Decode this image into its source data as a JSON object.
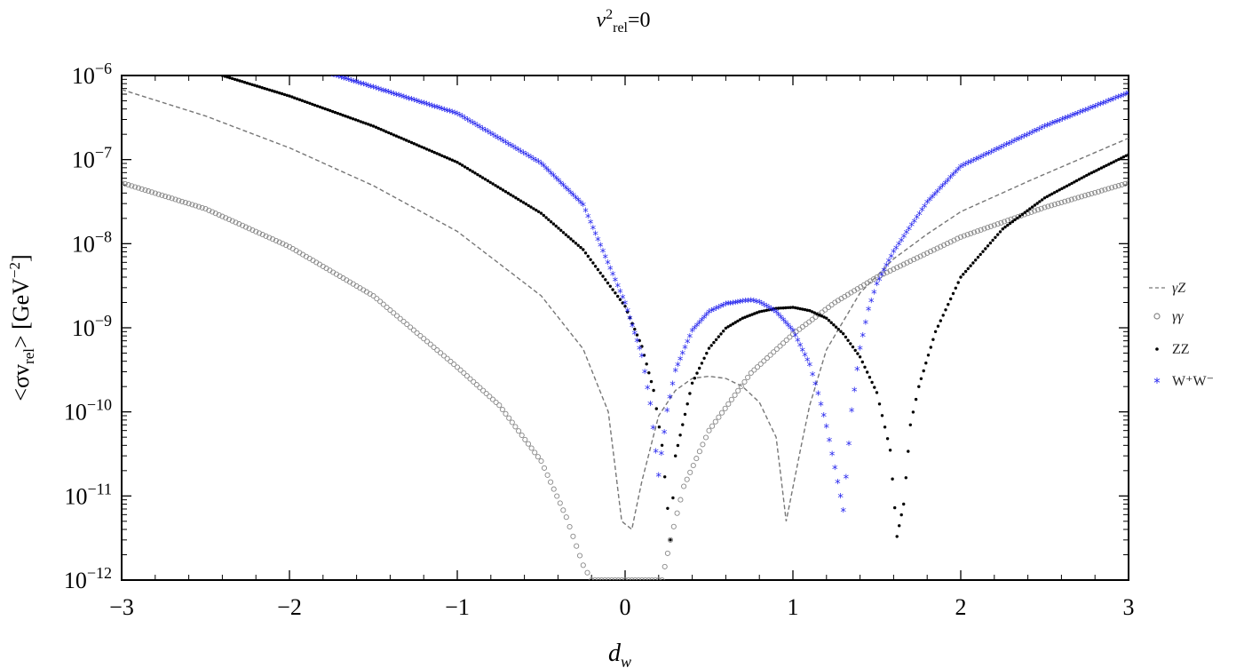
{
  "chart_data": {
    "type": "scatter",
    "title": {
      "v": "v",
      "sup": "2",
      "sub": "rel",
      "rest": "=0"
    },
    "xlabel": {
      "main": "d",
      "sub": "w"
    },
    "ylabel": {
      "pre": "<σv",
      "sub": "rel",
      "post": "> [GeV",
      "sup": "−2",
      "end": "]"
    },
    "x_axis": {
      "range": [
        -3,
        3
      ],
      "ticks": [
        -3,
        -2,
        -1,
        0,
        1,
        2,
        3
      ],
      "tick_labels": [
        "−3",
        "−2",
        "−1",
        "0",
        "1",
        "2",
        "3"
      ]
    },
    "y_axis": {
      "scale": "log",
      "range": [
        1e-12,
        1e-06
      ],
      "ticks": [
        {
          "value": 1e-06,
          "base": "10",
          "exp": "−6"
        },
        {
          "value": 1e-07,
          "base": "10",
          "exp": "−7"
        },
        {
          "value": 1e-08,
          "base": "10",
          "exp": "−8"
        },
        {
          "value": 1e-09,
          "base": "10",
          "exp": "−9"
        },
        {
          "value": 1e-10,
          "base": "10",
          "exp": "−10"
        },
        {
          "value": 1e-11,
          "base": "10",
          "exp": "−11"
        },
        {
          "value": 1e-12,
          "base": "10",
          "exp": "−12"
        }
      ]
    },
    "grid": false,
    "legend_position": "right",
    "series": [
      {
        "name": "γZ",
        "style": "dashed-line",
        "color": "#777777",
        "x": [
          -3.0,
          -2.5,
          -2.0,
          -1.5,
          -1.0,
          -0.5,
          -0.25,
          -0.1,
          -0.02,
          0.04,
          0.1,
          0.2,
          0.3,
          0.4,
          0.5,
          0.6,
          0.7,
          0.8,
          0.9,
          0.96,
          1.04,
          1.1,
          1.2,
          1.4,
          1.6,
          1.8,
          2.0,
          2.4,
          3.0
        ],
        "y": [
          6.8e-07,
          3.3e-07,
          1.38e-07,
          4.9e-08,
          1.4e-08,
          2.4e-09,
          5.6e-10,
          1e-10,
          5e-12,
          4e-12,
          1.5e-11,
          9e-11,
          1.8e-10,
          2.5e-10,
          2.65e-10,
          2.5e-10,
          2e-10,
          1.3e-10,
          5e-11,
          5e-12,
          3.2e-11,
          1.2e-10,
          5.5e-10,
          2.6e-09,
          6.6e-09,
          1.3e-08,
          2.4e-08,
          5.5e-08,
          1.8e-07
        ]
      },
      {
        "name": "γγ",
        "style": "open-circle",
        "color": "#888888",
        "x": [
          -3.0,
          -2.5,
          -2.0,
          -1.5,
          -1.0,
          -0.75,
          -0.5,
          -0.35,
          -0.25,
          -0.2,
          0.22,
          0.27,
          0.35,
          0.5,
          0.75,
          1.0,
          1.25,
          1.5,
          2.0,
          2.5,
          3.0
        ],
        "y": [
          5.3e-08,
          2.6e-08,
          9.2e-09,
          2.4e-09,
          3.4e-10,
          1.2e-10,
          2.6e-11,
          5.6e-12,
          1.5e-12,
          1e-12,
          1e-12,
          3e-12,
          1.3e-11,
          6e-11,
          2.9e-10,
          8.4e-10,
          2e-09,
          4e-09,
          1.2e-08,
          2.7e-08,
          5.3e-08
        ]
      },
      {
        "name": "ZZ",
        "style": "dot",
        "color": "#000000",
        "x": [
          -2.4,
          -2.0,
          -1.5,
          -1.0,
          -0.5,
          -0.25,
          0.0,
          0.1,
          0.17,
          0.22,
          0.27,
          0.3,
          0.4,
          0.5,
          0.6,
          0.7,
          0.8,
          0.9,
          1.0,
          1.1,
          1.2,
          1.3,
          1.4,
          1.5,
          1.58,
          1.62,
          1.66,
          1.7,
          1.75,
          1.85,
          2.0,
          2.25,
          2.5,
          2.75,
          3.0
        ],
        "y": [
          1e-06,
          5.7e-07,
          2.5e-07,
          9.3e-08,
          2.3e-08,
          8.5e-09,
          1.8e-09,
          6e-10,
          1.8e-10,
          4e-11,
          3e-12,
          3e-11,
          2.2e-10,
          5.7e-10,
          9.9e-10,
          1.3e-09,
          1.55e-09,
          1.7e-09,
          1.75e-09,
          1.6e-09,
          1.3e-09,
          8.5e-10,
          4.5e-10,
          1.7e-10,
          3.5e-11,
          3.3e-12,
          8e-12,
          7e-11,
          2e-10,
          9e-10,
          4e-09,
          1.5e-08,
          3.5e-08,
          6.5e-08,
          1.15e-07
        ]
      },
      {
        "name": "W⁺W⁻",
        "style": "star",
        "color": "#2222ee",
        "x": [
          -1.75,
          -1.5,
          -1.0,
          -0.5,
          -0.25,
          0.0,
          0.1,
          0.15,
          0.2,
          0.25,
          0.3,
          0.4,
          0.5,
          0.6,
          0.7,
          0.75,
          0.8,
          0.9,
          1.0,
          1.1,
          1.15,
          1.2,
          1.25,
          1.3,
          1.35,
          1.4,
          1.45,
          1.5,
          1.6,
          1.8,
          2.0,
          2.5,
          3.0
        ],
        "y": [
          1e-06,
          7e-07,
          3.4e-07,
          8.7e-08,
          2.8e-08,
          1.9e-09,
          4.5e-10,
          1.2e-10,
          1.7e-11,
          1e-10,
          3e-10,
          9e-10,
          1.5e-09,
          1.85e-09,
          2e-09,
          2.05e-09,
          1.95e-09,
          1.5e-09,
          9e-10,
          3.5e-10,
          1.6e-10,
          6.5e-11,
          2.1e-11,
          6.5e-12,
          1e-10,
          5.5e-10,
          1.6e-09,
          3.2e-09,
          7.8e-09,
          3e-08,
          8e-08,
          2.4e-07,
          6e-07
        ]
      }
    ]
  }
}
